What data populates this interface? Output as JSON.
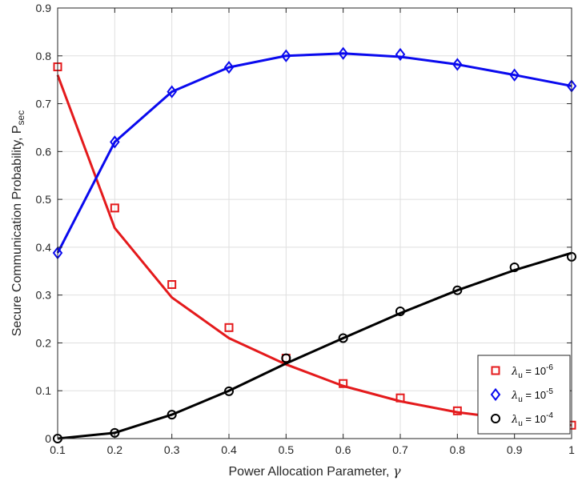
{
  "chart_data": {
    "type": "line",
    "title": "",
    "xlabel": "Power Allocation Parameter, ",
    "xlabel_symbol": "γ",
    "ylabel": "Secure Communication Probability, P",
    "ylabel_sub": "sec",
    "xlim": [
      0.1,
      1.0
    ],
    "ylim": [
      0,
      0.9
    ],
    "xticks": [
      "0.1",
      "0.2",
      "0.3",
      "0.4",
      "0.5",
      "0.6",
      "0.7",
      "0.8",
      "0.9",
      "1"
    ],
    "yticks": [
      "0",
      "0.1",
      "0.2",
      "0.3",
      "0.4",
      "0.5",
      "0.6",
      "0.7",
      "0.8",
      "0.9"
    ],
    "grid": true,
    "legend_position": "bottom-right",
    "series": [
      {
        "name": "λu = 10-6",
        "legend": {
          "sym": "λ",
          "sub": "u",
          "eq": " = 10",
          "sup": "-6"
        },
        "color": "#e41a1c",
        "marker": "square",
        "line_x": [
          0.1,
          0.2,
          0.3,
          0.4,
          0.5,
          0.6,
          0.7,
          0.8,
          0.9,
          1.0
        ],
        "line_y": [
          0.76,
          0.44,
          0.295,
          0.21,
          0.155,
          0.11,
          0.078,
          0.055,
          0.04,
          0.028
        ],
        "marker_x": [
          0.1,
          0.2,
          0.3,
          0.4,
          0.5,
          0.6,
          0.7,
          0.8,
          0.9,
          1.0
        ],
        "marker_y": [
          0.777,
          0.482,
          0.322,
          0.232,
          0.168,
          0.115,
          0.085,
          0.058,
          0.04,
          0.028
        ]
      },
      {
        "name": "λu = 10-5",
        "legend": {
          "sym": "λ",
          "sub": "u",
          "eq": " = 10",
          "sup": "-5"
        },
        "color": "#0a0aee",
        "marker": "diamond",
        "line_x": [
          0.1,
          0.2,
          0.3,
          0.4,
          0.5,
          0.6,
          0.7,
          0.8,
          0.9,
          1.0
        ],
        "line_y": [
          0.388,
          0.62,
          0.725,
          0.776,
          0.8,
          0.805,
          0.798,
          0.782,
          0.76,
          0.737
        ],
        "marker_x": [
          0.1,
          0.2,
          0.3,
          0.4,
          0.5,
          0.6,
          0.7,
          0.8,
          0.9,
          1.0
        ],
        "marker_y": [
          0.388,
          0.62,
          0.725,
          0.776,
          0.8,
          0.805,
          0.803,
          0.782,
          0.76,
          0.737
        ]
      },
      {
        "name": "λu = 10-4",
        "legend": {
          "sym": "λ",
          "sub": "u",
          "eq": " = 10",
          "sup": "-4"
        },
        "color": "#000000",
        "marker": "circle",
        "line_x": [
          0.1,
          0.2,
          0.3,
          0.4,
          0.5,
          0.6,
          0.7,
          0.8,
          0.9,
          1.0
        ],
        "line_y": [
          0.0,
          0.012,
          0.05,
          0.1,
          0.157,
          0.21,
          0.262,
          0.31,
          0.352,
          0.388
        ],
        "marker_x": [
          0.1,
          0.2,
          0.3,
          0.4,
          0.5,
          0.6,
          0.7,
          0.8,
          0.9,
          1.0
        ],
        "marker_y": [
          0.0,
          0.012,
          0.05,
          0.099,
          0.168,
          0.21,
          0.266,
          0.31,
          0.358,
          0.38
        ]
      }
    ]
  }
}
